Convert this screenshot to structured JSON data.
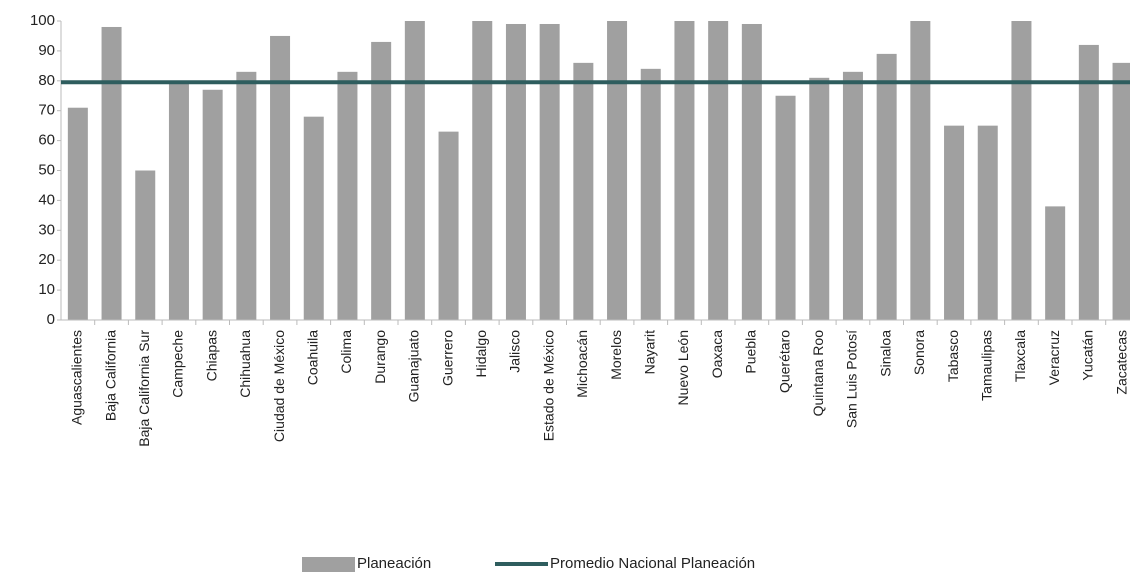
{
  "chart_data": {
    "type": "bar",
    "categories": [
      "Aguascalientes",
      "Baja California",
      "Baja California Sur",
      "Campeche",
      "Chiapas",
      "Chihuahua",
      "Ciudad de México",
      "Coahuila",
      "Colima",
      "Durango",
      "Guanajuato",
      "Guerrero",
      "Hidalgo",
      "Jalisco",
      "Estado de México",
      "Michoacán",
      "Morelos",
      "Nayarit",
      "Nuevo León",
      "Oaxaca",
      "Puebla",
      "Querétaro",
      "Quintana Roo",
      "San Luis Potosí",
      "Sinaloa",
      "Sonora",
      "Tabasco",
      "Tamaulipas",
      "Tlaxcala",
      "Veracruz",
      "Yucatán",
      "Zacatecas"
    ],
    "series": [
      {
        "name": "Planeación",
        "color": "#a0a0a0",
        "values": [
          71,
          98,
          50,
          80,
          77,
          83,
          95,
          68,
          83,
          93,
          100,
          63,
          100,
          99,
          99,
          86,
          100,
          84,
          100,
          100,
          99,
          75,
          81,
          83,
          89,
          100,
          65,
          65,
          100,
          38,
          92,
          86
        ]
      },
      {
        "name": "Promedio Nacional Planeación",
        "color": "#2e5d5e",
        "value": 79.5
      }
    ],
    "ylim": [
      0,
      100
    ],
    "yticks": [
      0,
      10,
      20,
      30,
      40,
      50,
      60,
      70,
      80,
      90,
      100
    ],
    "grid": false,
    "legend": "bottom"
  }
}
